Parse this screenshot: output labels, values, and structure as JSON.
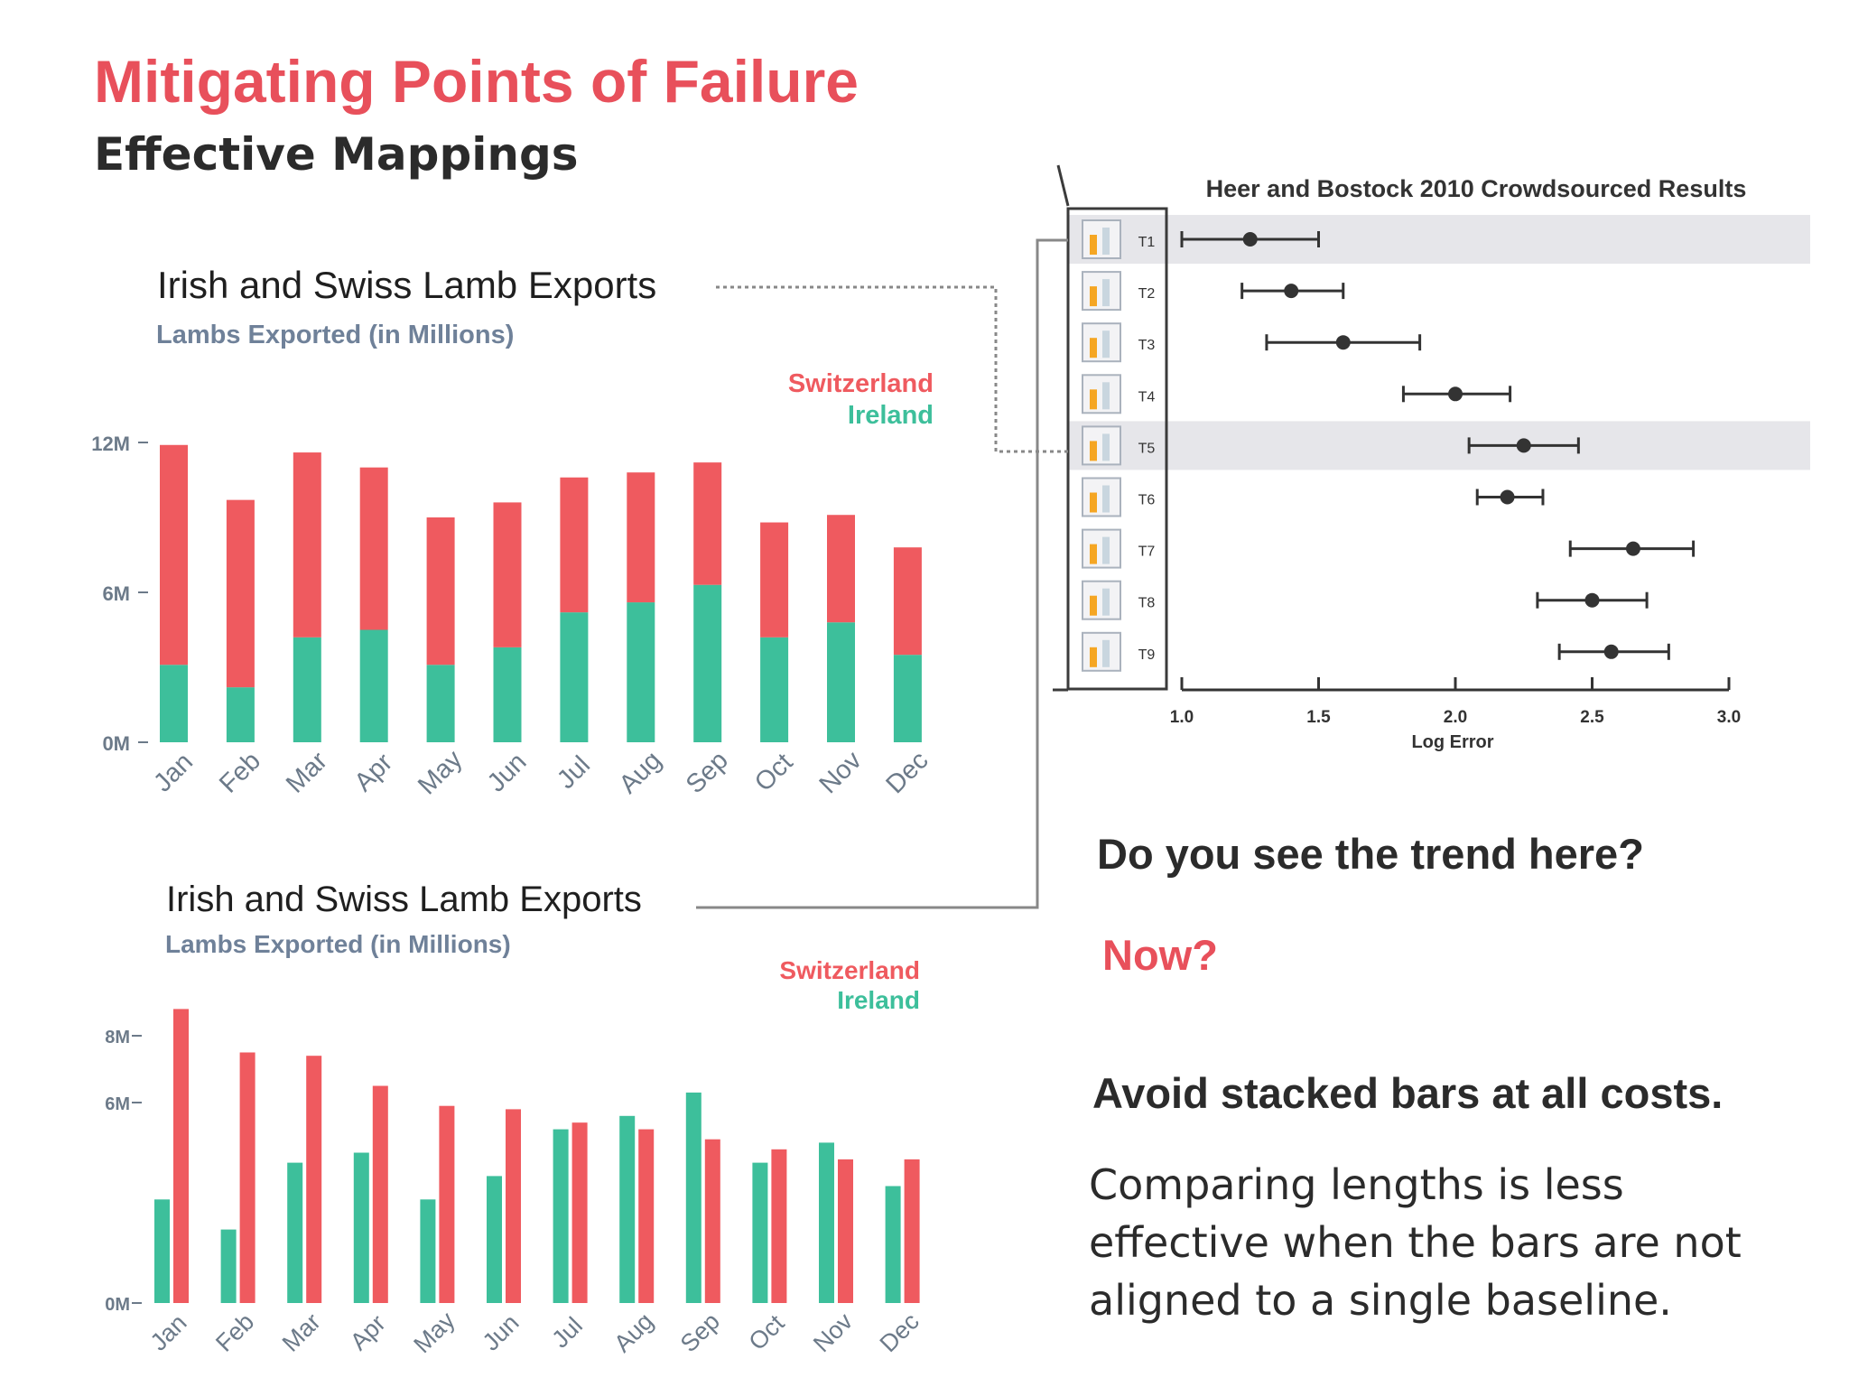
{
  "slide": {
    "title": "Mitigating Points of Failure",
    "subtitle": "Effective Mappings",
    "question": "Do you see the trend here?",
    "now": "Now?",
    "takeaway": "Avoid stacked bars at all costs.",
    "explanation": "Comparing lengths is less effective when the bars are not aligned to a single baseline."
  },
  "colors": {
    "switzerland": "#ef5a5f",
    "ireland": "#3dbf9b",
    "accent": "#e8505b",
    "text": "#2b2b2b",
    "axis": "#6c7a89"
  },
  "chart_data": [
    {
      "type": "bar",
      "stacked": true,
      "title": "Irish and Swiss Lamb Exports",
      "subtitle": "Lambs Exported (in Millions)",
      "categories": [
        "Jan",
        "Feb",
        "Mar",
        "Apr",
        "May",
        "Jun",
        "Jul",
        "Aug",
        "Sep",
        "Oct",
        "Nov",
        "Dec"
      ],
      "series": [
        {
          "name": "Ireland",
          "values": [
            3.1,
            2.2,
            4.2,
            4.5,
            3.1,
            3.8,
            5.2,
            5.6,
            6.3,
            4.2,
            4.8,
            3.5
          ]
        },
        {
          "name": "Switzerland",
          "values": [
            8.8,
            7.5,
            7.4,
            6.5,
            5.9,
            5.8,
            5.4,
            5.2,
            4.9,
            4.6,
            4.3,
            4.3
          ]
        }
      ],
      "yticks": [
        {
          "v": 0,
          "label": "0M"
        },
        {
          "v": 6,
          "label": "6M"
        },
        {
          "v": 12,
          "label": "12M"
        }
      ],
      "ylim": [
        0,
        12
      ],
      "legend": [
        "Switzerland",
        "Ireland"
      ]
    },
    {
      "type": "bar",
      "stacked": false,
      "title": "Irish and Swiss Lamb Exports",
      "subtitle": "Lambs Exported (in Millions)",
      "categories": [
        "Jan",
        "Feb",
        "Mar",
        "Apr",
        "May",
        "Jun",
        "Jul",
        "Aug",
        "Sep",
        "Oct",
        "Nov",
        "Dec"
      ],
      "series": [
        {
          "name": "Ireland",
          "values": [
            3.1,
            2.2,
            4.2,
            4.5,
            3.1,
            3.8,
            5.2,
            5.6,
            6.3,
            4.2,
            4.8,
            3.5
          ]
        },
        {
          "name": "Switzerland",
          "values": [
            8.8,
            7.5,
            7.4,
            6.5,
            5.9,
            5.8,
            5.4,
            5.2,
            4.9,
            4.6,
            4.3,
            4.3
          ]
        }
      ],
      "yticks": [
        {
          "v": 0,
          "label": "0M"
        },
        {
          "v": 6,
          "label": "6M"
        },
        {
          "v": 8,
          "label": "8M"
        }
      ],
      "ylim": [
        0,
        8.8
      ],
      "legend": [
        "Switzerland",
        "Ireland"
      ]
    },
    {
      "type": "scatter",
      "subtype": "error-bar",
      "title": "Heer and Bostock 2010 Crowdsourced Results",
      "xlabel": "Log Error",
      "xlim": [
        1.0,
        3.0
      ],
      "xticks": [
        {
          "v": 1.0,
          "label": "1.0"
        },
        {
          "v": 1.5,
          "label": "1.5"
        },
        {
          "v": 2.0,
          "label": "2.0"
        },
        {
          "v": 2.5,
          "label": "2.5"
        },
        {
          "v": 3.0,
          "label": "3.0"
        }
      ],
      "rows": [
        {
          "label": "T1",
          "mean": 1.25,
          "low": 1.0,
          "high": 1.5,
          "highlight": true
        },
        {
          "label": "T2",
          "mean": 1.4,
          "low": 1.22,
          "high": 1.59,
          "highlight": false
        },
        {
          "label": "T3",
          "mean": 1.59,
          "low": 1.31,
          "high": 1.87,
          "highlight": false
        },
        {
          "label": "T4",
          "mean": 2.0,
          "low": 1.81,
          "high": 2.2,
          "highlight": false
        },
        {
          "label": "T5",
          "mean": 2.25,
          "low": 2.05,
          "high": 2.45,
          "highlight": true
        },
        {
          "label": "T6",
          "mean": 2.19,
          "low": 2.08,
          "high": 2.32,
          "highlight": false
        },
        {
          "label": "T7",
          "mean": 2.65,
          "low": 2.42,
          "high": 2.87,
          "highlight": false
        },
        {
          "label": "T8",
          "mean": 2.5,
          "low": 2.3,
          "high": 2.7,
          "highlight": false
        },
        {
          "label": "T9",
          "mean": 2.57,
          "low": 2.38,
          "high": 2.78,
          "highlight": false
        }
      ]
    }
  ]
}
